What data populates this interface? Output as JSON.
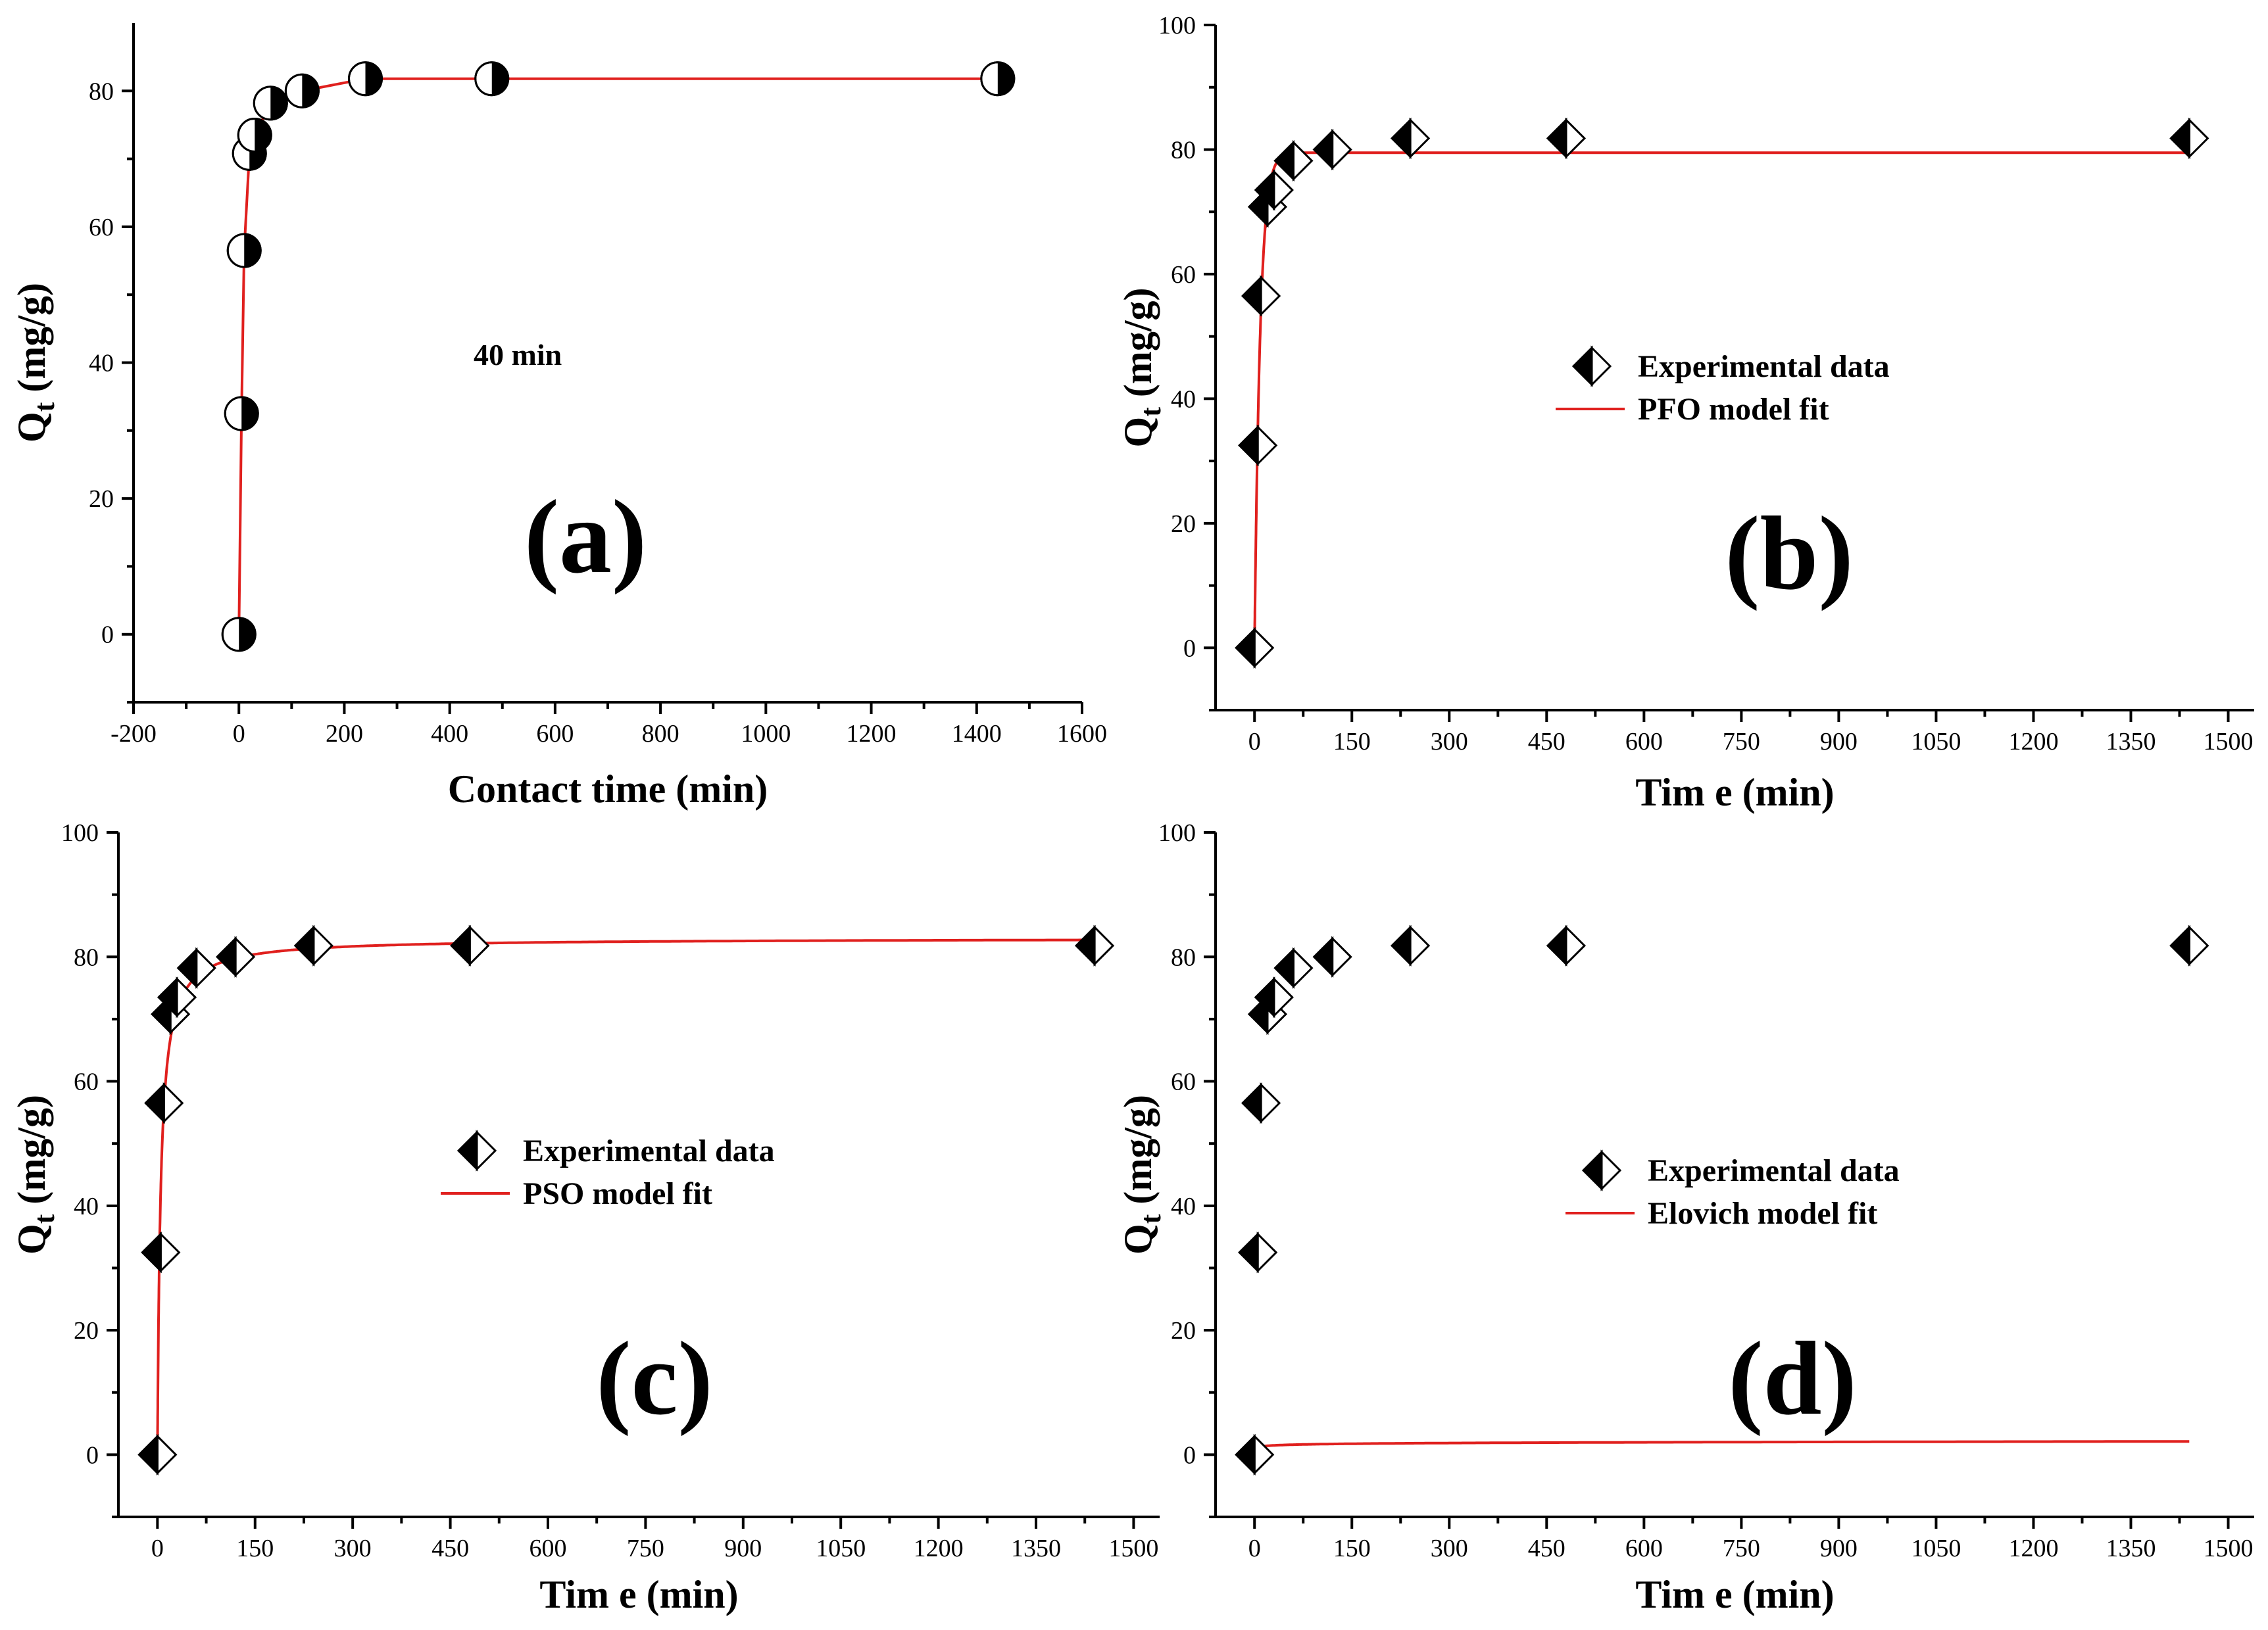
{
  "chart_data": [
    {
      "type": "scatter",
      "panel_label": "(a)",
      "title": "",
      "xlabel": "Contact time (min)",
      "ylabel": "Qt (mg/g)",
      "ylabel_main": "Q",
      "ylabel_sub": "t",
      "ylabel_unit": " (mg/g)",
      "xlim": [
        -200,
        1600
      ],
      "ylim": [
        -10,
        90
      ],
      "xticks": [
        -200,
        0,
        200,
        400,
        600,
        800,
        1000,
        1200,
        1400,
        1600
      ],
      "xtick_labels": [
        "-200",
        "0",
        "200",
        "400",
        "600",
        "800",
        "1000",
        "1200",
        "1400",
        "1600"
      ],
      "yticks": [
        0,
        20,
        40,
        60,
        80
      ],
      "ytick_labels": [
        "0",
        "20",
        "40",
        "60",
        "80"
      ],
      "marker": "half-circle",
      "annotation": "40 min",
      "series": [
        {
          "name": "Experimental data",
          "x": [
            0,
            5,
            10,
            20,
            30,
            60,
            120,
            240,
            480,
            1440
          ],
          "y": [
            0,
            32.5,
            56.5,
            70.8,
            73.5,
            78.2,
            80,
            81.8,
            81.8,
            81.8
          ]
        }
      ],
      "line": {
        "style": "connect",
        "x": [
          0,
          5,
          10,
          20,
          30,
          60,
          120,
          240,
          480,
          1440
        ],
        "y": [
          0,
          32.5,
          56.5,
          70.8,
          73.5,
          78.2,
          80,
          81.8,
          81.8,
          81.8
        ]
      }
    },
    {
      "type": "scatter",
      "panel_label": "(b)",
      "title": "",
      "xlabel": "Tim e (min)",
      "ylabel": "Qt (mg/g)",
      "ylabel_main": "Q",
      "ylabel_sub": "t",
      "ylabel_unit": " (mg/g)",
      "xlim": [
        -60,
        1540
      ],
      "ylim": [
        -10,
        100
      ],
      "xticks": [
        0,
        150,
        300,
        450,
        600,
        750,
        900,
        1050,
        1200,
        1350,
        1500
      ],
      "xtick_labels": [
        "0",
        "150",
        "300",
        "450",
        "600",
        "750",
        "900",
        "1050",
        "1200",
        "1350",
        "1500"
      ],
      "yticks": [
        0,
        20,
        40,
        60,
        80,
        100
      ],
      "ytick_labels": [
        "0",
        "20",
        "40",
        "60",
        "80",
        "100"
      ],
      "marker": "half-diamond",
      "legend": [
        "Experimental data",
        "PFO model fit"
      ],
      "legend_placement": "center-right",
      "series": [
        {
          "name": "Experimental data",
          "x": [
            0,
            5,
            10,
            20,
            30,
            60,
            120,
            240,
            480,
            1440
          ],
          "y": [
            0,
            32.5,
            56.5,
            70.8,
            73.5,
            78.2,
            80,
            81.8,
            81.8,
            81.8
          ]
        }
      ],
      "line": {
        "name": "PFO model fit",
        "model": "pfo",
        "qe": 79.5,
        "k": 0.115,
        "x_max": 1440
      }
    },
    {
      "type": "scatter",
      "panel_label": "(c)",
      "title": "",
      "xlabel": "Tim e (min)",
      "ylabel": "Qt (mg/g)",
      "ylabel_main": "Q",
      "ylabel_sub": "t",
      "ylabel_unit": " (mg/g)",
      "xlim": [
        -60,
        1540
      ],
      "ylim": [
        -10,
        100
      ],
      "xticks": [
        0,
        150,
        300,
        450,
        600,
        750,
        900,
        1050,
        1200,
        1350,
        1500
      ],
      "xtick_labels": [
        "0",
        "150",
        "300",
        "450",
        "600",
        "750",
        "900",
        "1050",
        "1200",
        "1350",
        "1500"
      ],
      "yticks": [
        0,
        20,
        40,
        60,
        80,
        100
      ],
      "ytick_labels": [
        "0",
        "20",
        "40",
        "60",
        "80",
        "100"
      ],
      "marker": "half-diamond",
      "legend": [
        "Experimental data",
        "PSO model fit"
      ],
      "legend_placement": "center",
      "series": [
        {
          "name": "Experimental data",
          "x": [
            0,
            5,
            10,
            20,
            30,
            60,
            120,
            240,
            480,
            1440
          ],
          "y": [
            0,
            32.5,
            56.5,
            70.8,
            73.5,
            78.2,
            80,
            81.8,
            81.8,
            81.8
          ]
        }
      ],
      "line": {
        "name": "PSO model fit",
        "model": "pso",
        "qe": 83,
        "k": 0.0025,
        "x_max": 1440
      }
    },
    {
      "type": "scatter",
      "panel_label": "(d)",
      "title": "",
      "xlabel": "Tim e (min)",
      "ylabel": "Qt (mg/g)",
      "ylabel_main": "Q",
      "ylabel_sub": "t",
      "ylabel_unit": " (mg/g)",
      "xlim": [
        -60,
        1540
      ],
      "ylim": [
        -10,
        100
      ],
      "xticks": [
        0,
        150,
        300,
        450,
        600,
        750,
        900,
        1050,
        1200,
        1350,
        1500
      ],
      "xtick_labels": [
        "0",
        "150",
        "300",
        "450",
        "600",
        "750",
        "900",
        "1050",
        "1200",
        "1350",
        "1500"
      ],
      "yticks": [
        0,
        20,
        40,
        60,
        80,
        100
      ],
      "ytick_labels": [
        "0",
        "20",
        "40",
        "60",
        "80",
        "100"
      ],
      "marker": "half-diamond",
      "legend": [
        "Experimental data",
        "Elovich model fit"
      ],
      "legend_placement": "center-right",
      "series": [
        {
          "name": "Experimental data",
          "x": [
            0,
            5,
            10,
            20,
            30,
            60,
            120,
            240,
            480,
            1440
          ],
          "y": [
            0,
            32.5,
            56.5,
            70.8,
            73.5,
            78.2,
            80,
            81.8,
            81.8,
            81.8
          ]
        }
      ],
      "line": {
        "name": "Elovich model fit",
        "model": "elovich",
        "a": 48.2,
        "b": 6.08,
        "x_max": 1440
      }
    }
  ]
}
